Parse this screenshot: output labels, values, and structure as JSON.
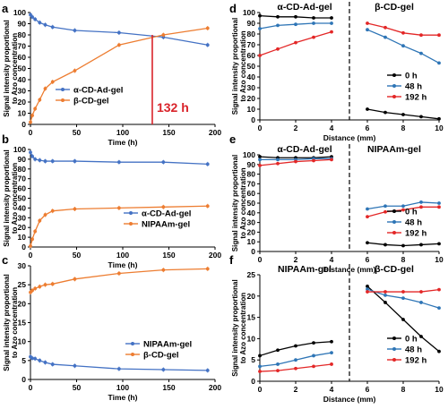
{
  "chart_data": [
    {
      "panel": "a",
      "type": "line",
      "xlabel": "Time (h)",
      "ylabel": "Signal intensity proportional to Azo concentration",
      "xlim": [
        0,
        200
      ],
      "ylim": [
        0,
        100
      ],
      "xticks": [
        0,
        50,
        100,
        150,
        200
      ],
      "yticks": [
        0,
        10,
        20,
        30,
        40,
        50,
        60,
        70,
        80,
        90,
        100
      ],
      "legend": "bottom-left",
      "series": [
        {
          "name": "α-CD-Ad-gel",
          "color": "#4472c4",
          "x": [
            0,
            2,
            5,
            10,
            16,
            24,
            48,
            96,
            144,
            192
          ],
          "y": [
            98,
            96,
            94,
            91,
            89,
            87,
            84,
            82,
            78,
            71
          ]
        },
        {
          "name": "β-CD-gel",
          "color": "#ed7d31",
          "x": [
            0,
            2,
            5,
            10,
            16,
            24,
            48,
            96,
            144,
            192
          ],
          "y": [
            2,
            8,
            14,
            22,
            32,
            38,
            48,
            71,
            80,
            86
          ]
        }
      ],
      "annotation": {
        "text": "132 h",
        "x": 132,
        "color": "#d9232a"
      }
    },
    {
      "panel": "b",
      "type": "line",
      "xlabel": "Time (h)",
      "ylabel": "Signal intensity proportional to Azo concentration",
      "xlim": [
        0,
        200
      ],
      "ylim": [
        0,
        100
      ],
      "xticks": [
        0,
        50,
        100,
        150,
        200
      ],
      "yticks": [
        0,
        10,
        20,
        30,
        40,
        50,
        60,
        70,
        80,
        90,
        100
      ],
      "legend": "bottom-right",
      "series": [
        {
          "name": "α-CD-Ad-gel",
          "color": "#4472c4",
          "x": [
            0,
            2,
            5,
            10,
            16,
            24,
            48,
            96,
            144,
            192
          ],
          "y": [
            97,
            93,
            90,
            89,
            88,
            88,
            88,
            87,
            87,
            85
          ]
        },
        {
          "name": "NIPAAm-gel",
          "color": "#ed7d31",
          "x": [
            0,
            2,
            5,
            10,
            16,
            24,
            48,
            96,
            144,
            192
          ],
          "y": [
            1,
            8,
            16,
            27,
            33,
            37,
            39,
            40,
            41,
            42
          ]
        }
      ]
    },
    {
      "panel": "c",
      "type": "line",
      "xlabel": "Time (h)",
      "ylabel": "Signal intensity proportional to Azo concentration",
      "xlim": [
        0,
        200
      ],
      "ylim": [
        0,
        30
      ],
      "xticks": [
        0,
        50,
        100,
        150,
        200
      ],
      "yticks": [
        0,
        5,
        10,
        15,
        20,
        25,
        30
      ],
      "legend": "bottom-right",
      "series": [
        {
          "name": "NIPAAm-gel",
          "color": "#4472c4",
          "x": [
            0,
            2,
            5,
            10,
            16,
            24,
            48,
            96,
            144,
            192
          ],
          "y": [
            6,
            5.6,
            5.5,
            5,
            4.5,
            4,
            3.6,
            2.8,
            2.6,
            2.4
          ]
        },
        {
          "name": "β-CD-gel",
          "color": "#ed7d31",
          "x": [
            0,
            2,
            5,
            10,
            16,
            24,
            48,
            96,
            144,
            192
          ],
          "y": [
            23,
            23.5,
            24,
            24.5,
            25,
            25.2,
            26.5,
            28,
            28.9,
            29.2
          ]
        }
      ]
    },
    {
      "panel": "d",
      "type": "line",
      "xlabel": "Distance (mm)",
      "ylabel": "Signal intensity proportional to Azo concentration",
      "xlim": [
        0,
        10
      ],
      "ylim": [
        0,
        100
      ],
      "xticks": [
        0,
        2,
        4,
        6,
        8,
        10
      ],
      "yticks": [
        0,
        10,
        20,
        30,
        40,
        50,
        60,
        70,
        80,
        90,
        100
      ],
      "divider_x": 5,
      "left_gel": "α-CD-Ad-gel",
      "right_gel": "β-CD-gel",
      "legend": "bottom-right",
      "series": [
        {
          "name": "0 h",
          "color": "#000000",
          "x": [
            0,
            1,
            2,
            3,
            4,
            6,
            7,
            8,
            9,
            10
          ],
          "y": [
            97,
            96,
            96,
            95,
            95,
            10,
            7,
            5,
            3,
            1
          ]
        },
        {
          "name": "48 h",
          "color": "#2e75b6",
          "x": [
            0,
            1,
            2,
            3,
            4,
            6,
            7,
            8,
            9,
            10
          ],
          "y": [
            85,
            88,
            89,
            90,
            90,
            84,
            77,
            69,
            62,
            53
          ]
        },
        {
          "name": "192 h",
          "color": "#e32727",
          "x": [
            0,
            1,
            2,
            3,
            4,
            6,
            7,
            8,
            9,
            10
          ],
          "y": [
            60,
            66,
            72,
            77,
            82,
            90,
            86,
            81,
            79,
            79
          ]
        }
      ]
    },
    {
      "panel": "e",
      "type": "line",
      "xlabel": "Distance (mm)",
      "ylabel": "Signal intensity proportional to Azo concentration",
      "xlim": [
        0,
        10
      ],
      "ylim": [
        0,
        100
      ],
      "xticks": [
        0,
        2,
        4,
        6,
        8,
        10
      ],
      "yticks": [
        0,
        10,
        20,
        30,
        40,
        50,
        60,
        70,
        80,
        90,
        100
      ],
      "divider_x": 5,
      "left_gel": "α-CD-Ad-gel",
      "right_gel": "NIPAAm-gel",
      "legend": "bottom-right",
      "series": [
        {
          "name": "0 h",
          "color": "#000000",
          "x": [
            0,
            1,
            2,
            3,
            4,
            6,
            7,
            8,
            9,
            10
          ],
          "y": [
            98,
            97,
            97,
            97,
            98,
            9,
            7,
            6,
            7,
            8
          ]
        },
        {
          "name": "48 h",
          "color": "#2e75b6",
          "x": [
            0,
            1,
            2,
            3,
            4,
            6,
            7,
            8,
            9,
            10
          ],
          "y": [
            95,
            95,
            95,
            96,
            96,
            44,
            47,
            47,
            51,
            50
          ]
        },
        {
          "name": "192 h",
          "color": "#e32727",
          "x": [
            0,
            1,
            2,
            3,
            4,
            6,
            7,
            8,
            9,
            10
          ],
          "y": [
            89,
            91,
            93,
            94,
            95,
            36,
            41,
            43,
            46,
            46
          ]
        }
      ]
    },
    {
      "panel": "f",
      "type": "line",
      "xlabel": "Distance (mm)",
      "ylabel": "Signal intensity proportional to Azo concentration",
      "xlim": [
        0,
        10
      ],
      "ylim": [
        0,
        25
      ],
      "xticks": [
        0,
        2,
        4,
        6,
        8,
        10
      ],
      "yticks": [
        0,
        5,
        10,
        15,
        20,
        25
      ],
      "divider_x": 5,
      "left_gel": "NIPAAm-gel",
      "right_gel": "β-CD-gel",
      "legend": "bottom-right",
      "series": [
        {
          "name": "0 h",
          "color": "#000000",
          "x": [
            0,
            1,
            2,
            3,
            4,
            6,
            7,
            8,
            9,
            10
          ],
          "y": [
            6,
            7.3,
            8.3,
            9,
            9.3,
            22.3,
            18.5,
            14.5,
            10.5,
            7
          ]
        },
        {
          "name": "48 h",
          "color": "#2e75b6",
          "x": [
            0,
            1,
            2,
            3,
            4,
            6,
            7,
            8,
            9,
            10
          ],
          "y": [
            3.5,
            4,
            5,
            6,
            6.7,
            21.6,
            20.2,
            19.5,
            18.5,
            17.2
          ]
        },
        {
          "name": "192 h",
          "color": "#e32727",
          "x": [
            0,
            1,
            2,
            3,
            4,
            6,
            7,
            8,
            9,
            10
          ],
          "y": [
            2.3,
            2.5,
            3,
            3.5,
            4,
            21,
            21,
            21,
            21,
            21.5
          ]
        }
      ]
    }
  ]
}
